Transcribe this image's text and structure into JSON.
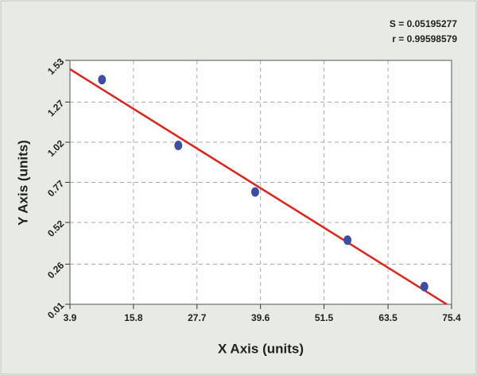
{
  "chart_data": {
    "type": "scatter",
    "annotations": [
      "S = 0.05195277",
      "r = 0.99598579"
    ],
    "x_label": "X Axis (units)",
    "y_label": "Y Axis (units)",
    "xlim": [
      3.9,
      75.4
    ],
    "xticks": [
      3.9,
      15.8,
      27.7,
      39.6,
      51.5,
      63.5,
      75.4
    ],
    "ylim": [
      0.01,
      1.53
    ],
    "yticks": [
      0.01,
      0.26,
      0.52,
      0.77,
      1.02,
      1.27,
      1.53
    ],
    "grid": true,
    "series": [
      {
        "color": "#3b4ea6",
        "x": [
          9.9,
          24.2,
          38.6,
          55.9,
          70.3
        ],
        "values": [
          1.41,
          1.0,
          0.71,
          0.41,
          0.12
        ]
      }
    ],
    "fit_line": {
      "color": "#e3231b",
      "x": [
        3.9,
        74.5
      ],
      "values": [
        1.475,
        0.01
      ]
    }
  }
}
